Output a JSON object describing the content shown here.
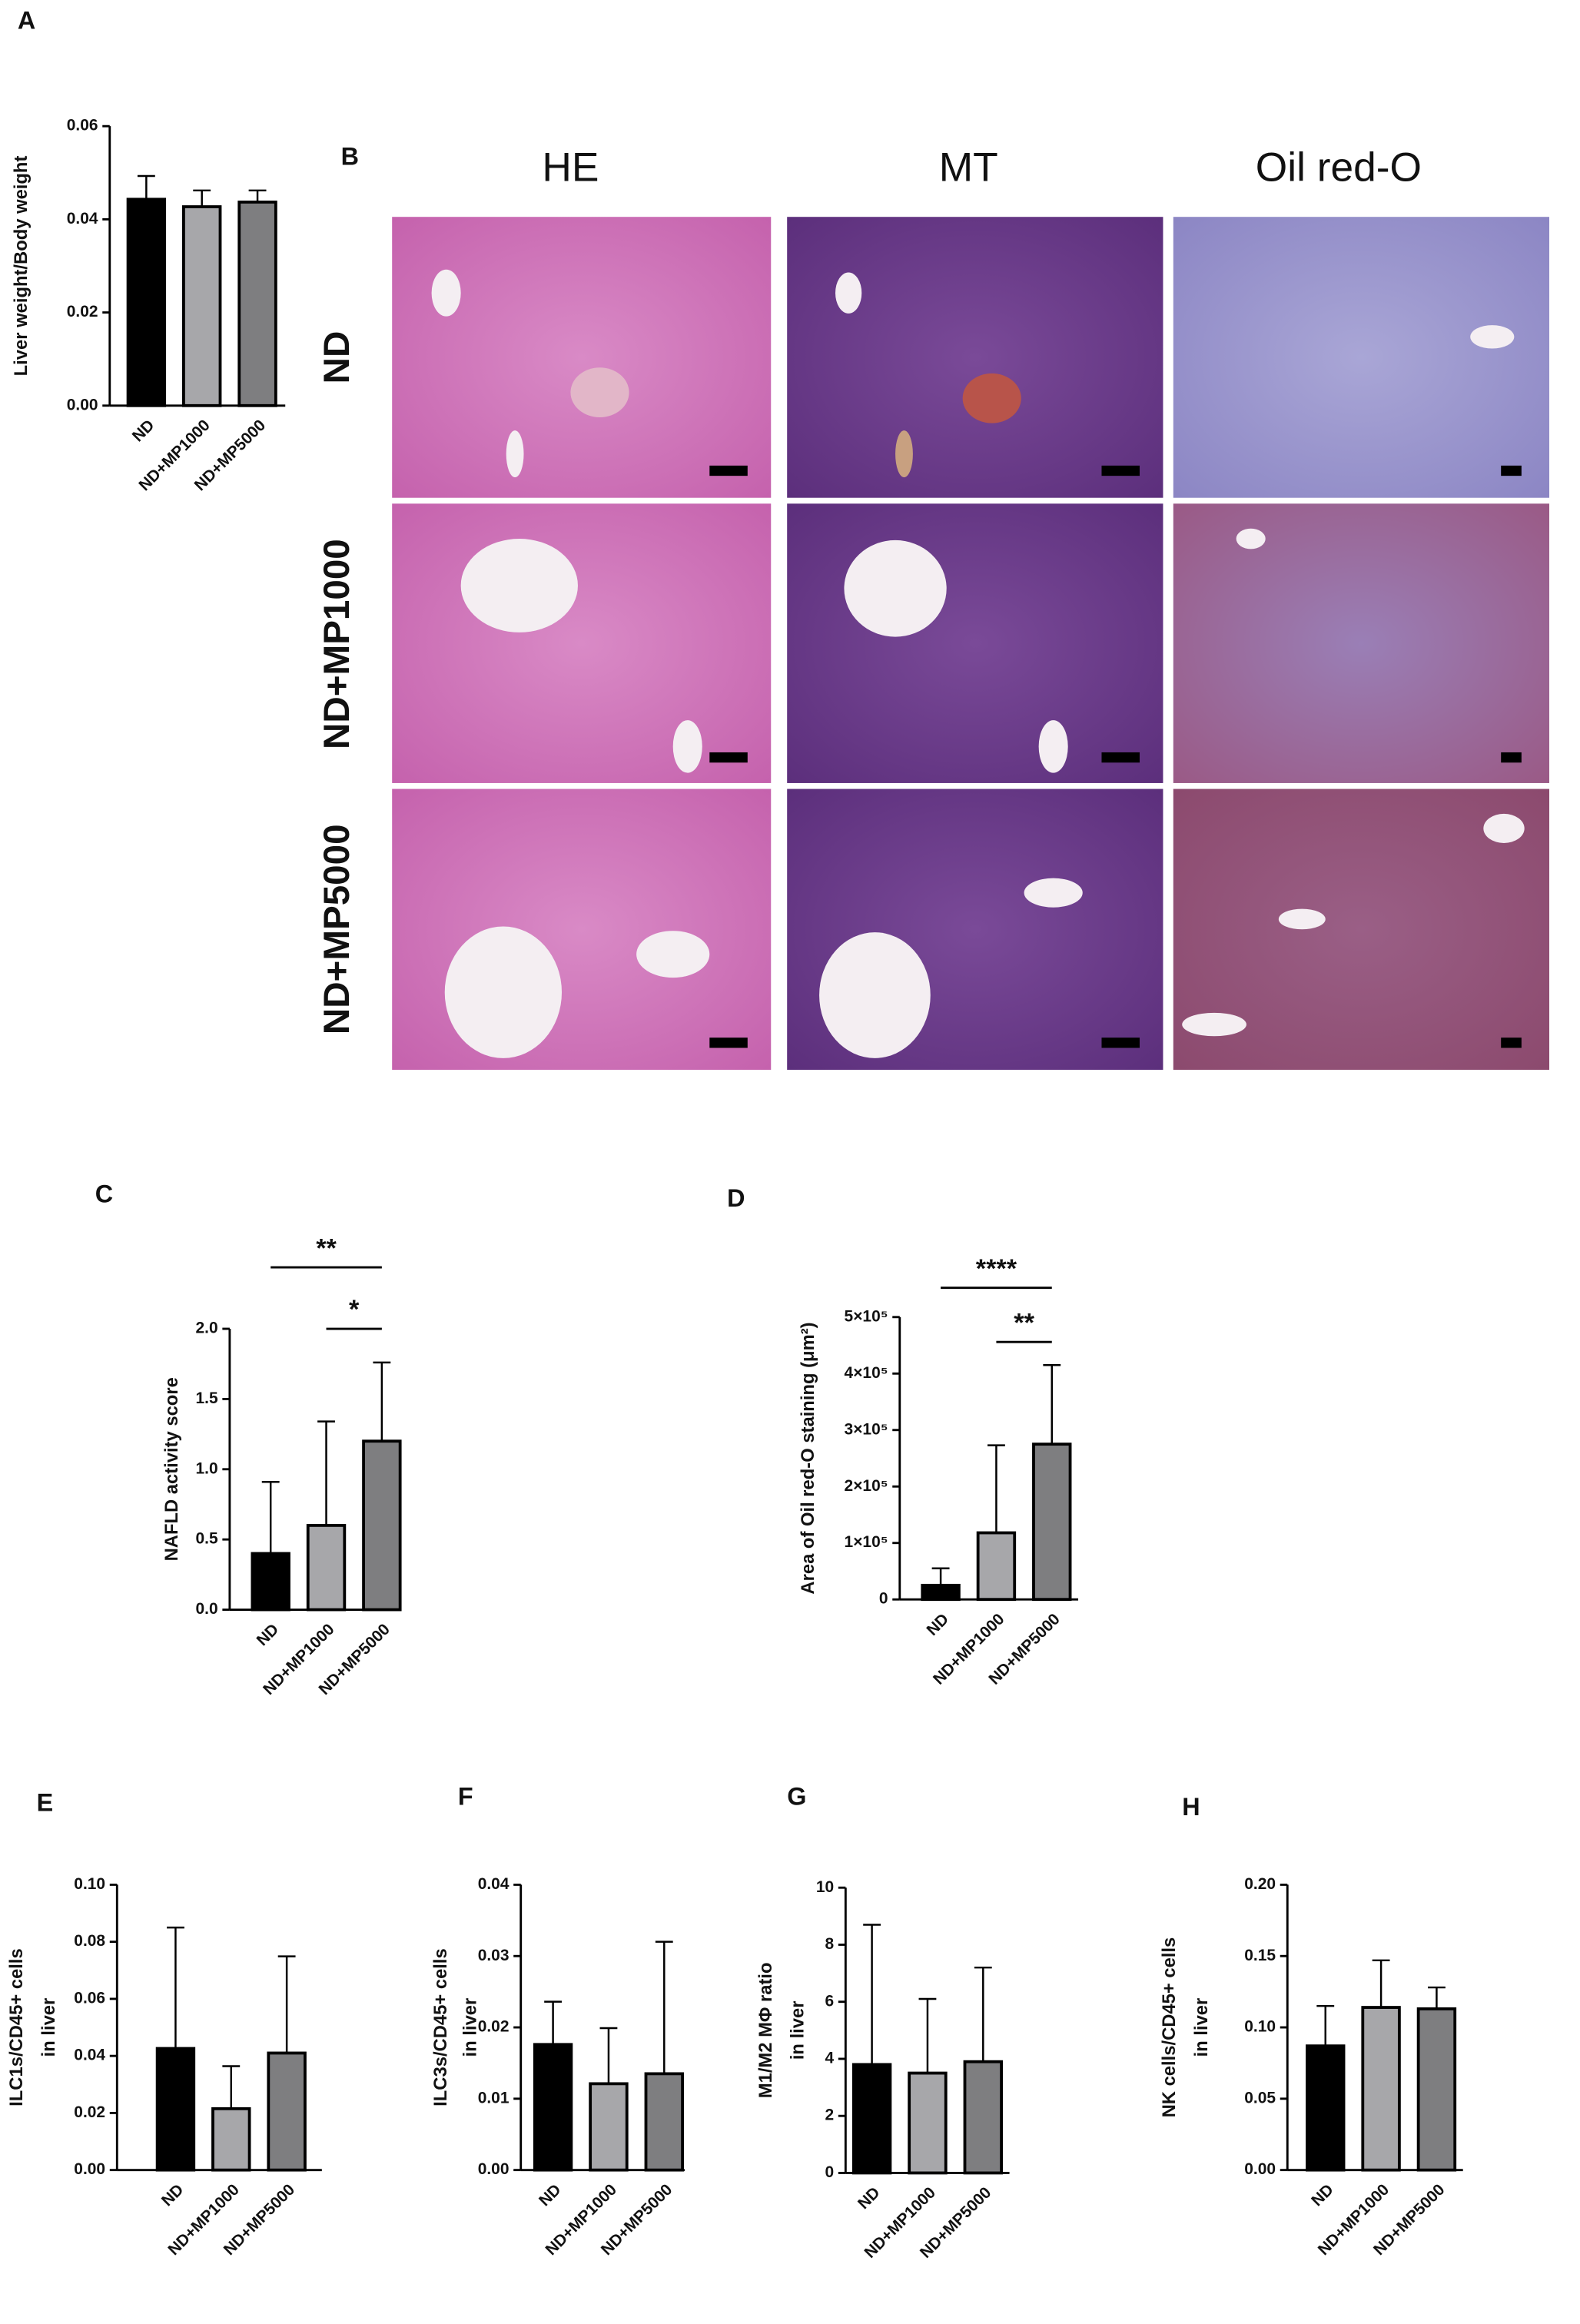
{
  "histology": {
    "label": "B",
    "columns": [
      "HE",
      "MT",
      "Oil red-O"
    ],
    "rows": [
      "ND",
      "ND+MP1000",
      "ND+MP5000"
    ]
  },
  "chart_data": [
    {
      "type": "bar",
      "label": "A",
      "ylabel": [
        "Liver weight/Body weight"
      ],
      "categories": [
        "ND",
        "ND+MP1000",
        "ND+MP5000"
      ],
      "values": [
        0.0443,
        0.0427,
        0.0437
      ],
      "errors": [
        0.005,
        0.0035,
        0.0025
      ],
      "colors": [
        "#000000",
        "#a7a7aa",
        "#7e7e80"
      ],
      "ylim": [
        0,
        0.06
      ],
      "yticks": [
        {
          "value": 0,
          "label": "0.00"
        },
        0.02,
        0.04,
        0.06
      ],
      "annotations": []
    },
    {
      "type": "bar",
      "label": "C",
      "ylabel": [
        "NAFLD activity score"
      ],
      "categories": [
        "ND",
        "ND+MP1000",
        "ND+MP5000"
      ],
      "values": [
        0.4,
        0.6,
        1.2
      ],
      "errors": [
        0.51,
        0.74,
        0.56
      ],
      "colors": [
        "#000000",
        "#a7a7aa",
        "#7e7e80"
      ],
      "ylim": [
        0,
        2
      ],
      "yticks": [
        {
          "value": 0,
          "label": "0.0"
        },
        0.5,
        {
          "value": 1,
          "label": "1.0"
        },
        1.5,
        {
          "value": 2,
          "label": "2.0"
        }
      ],
      "annotations": [
        {
          "text": "**",
          "between": [
            "ND",
            "ND+MP5000"
          ]
        },
        {
          "text": "*",
          "between": [
            "ND+MP1000",
            "ND+MP5000"
          ]
        }
      ]
    },
    {
      "type": "bar",
      "label": "D",
      "ylabel": [
        "Area of Oil red-O staining (μm²)"
      ],
      "categories": [
        "ND",
        "ND+MP1000",
        "ND+MP5000"
      ],
      "values": [
        25000,
        118000,
        275000
      ],
      "errors": [
        30000,
        155000,
        140000
      ],
      "colors": [
        "#000000",
        "#a7a7aa",
        "#7e7e80"
      ],
      "ylim": [
        0,
        500000
      ],
      "yticks": [
        0,
        {
          "value": 100000,
          "label": "1×10⁵"
        },
        {
          "value": 200000,
          "label": "2×10⁵"
        },
        {
          "value": 300000,
          "label": "3×10⁵"
        },
        {
          "value": 400000,
          "label": "4×10⁵"
        },
        {
          "value": 500000,
          "label": "5×10⁵"
        }
      ],
      "annotations": [
        {
          "text": "****",
          "between": [
            "ND",
            "ND+MP5000"
          ]
        },
        {
          "text": "**",
          "between": [
            "ND+MP1000",
            "ND+MP5000"
          ]
        }
      ]
    },
    {
      "type": "bar",
      "label": "E",
      "ylabel": [
        "ILC1s/CD45+ cells",
        "in liver"
      ],
      "categories": [
        "ND",
        "ND+MP1000",
        "ND+MP5000"
      ],
      "values": [
        0.0426,
        0.0215,
        0.041
      ],
      "errors": [
        0.0424,
        0.0149,
        0.0339
      ],
      "colors": [
        "#000000",
        "#a7a7aa",
        "#7e7e80"
      ],
      "ylim": [
        0,
        0.1
      ],
      "yticks": [
        {
          "value": 0,
          "label": "0.00"
        },
        0.02,
        0.04,
        0.06,
        0.08,
        {
          "value": 0.1,
          "label": "0.10"
        }
      ],
      "annotations": []
    },
    {
      "type": "bar",
      "label": "F",
      "ylabel": [
        "ILC3s/CD45+ cells",
        "in liver"
      ],
      "categories": [
        "ND",
        "ND+MP1000",
        "ND+MP5000"
      ],
      "values": [
        0.0176,
        0.0121,
        0.0135
      ],
      "errors": [
        0.006,
        0.0078,
        0.0185
      ],
      "colors": [
        "#000000",
        "#a7a7aa",
        "#7e7e80"
      ],
      "ylim": [
        0,
        0.04
      ],
      "yticks": [
        {
          "value": 0,
          "label": "0.00"
        },
        0.01,
        0.02,
        0.03,
        0.04
      ],
      "annotations": []
    },
    {
      "type": "bar",
      "label": "G",
      "ylabel": [
        "M1/M2 MΦ ratio",
        "in liver"
      ],
      "categories": [
        "ND",
        "ND+MP1000",
        "ND+MP5000"
      ],
      "values": [
        3.8,
        3.5,
        3.9
      ],
      "errors": [
        4.9,
        2.6,
        3.3
      ],
      "colors": [
        "#000000",
        "#a7a7aa",
        "#7e7e80"
      ],
      "ylim": [
        0,
        10
      ],
      "yticks": [
        0,
        2,
        4,
        6,
        8,
        10
      ],
      "annotations": []
    },
    {
      "type": "bar",
      "label": "H",
      "ylabel": [
        "NK cells/CD45+ cells",
        "in liver"
      ],
      "categories": [
        "ND",
        "ND+MP1000",
        "ND+MP5000"
      ],
      "values": [
        0.087,
        0.114,
        0.113
      ],
      "errors": [
        0.028,
        0.033,
        0.015
      ],
      "colors": [
        "#000000",
        "#a7a7aa",
        "#7e7e80"
      ],
      "ylim": [
        0,
        0.2
      ],
      "yticks": [
        {
          "value": 0,
          "label": "0.00"
        },
        0.05,
        {
          "value": 0.1,
          "label": "0.10"
        },
        0.15,
        {
          "value": 0.2,
          "label": "0.20"
        }
      ],
      "annotations": []
    }
  ]
}
